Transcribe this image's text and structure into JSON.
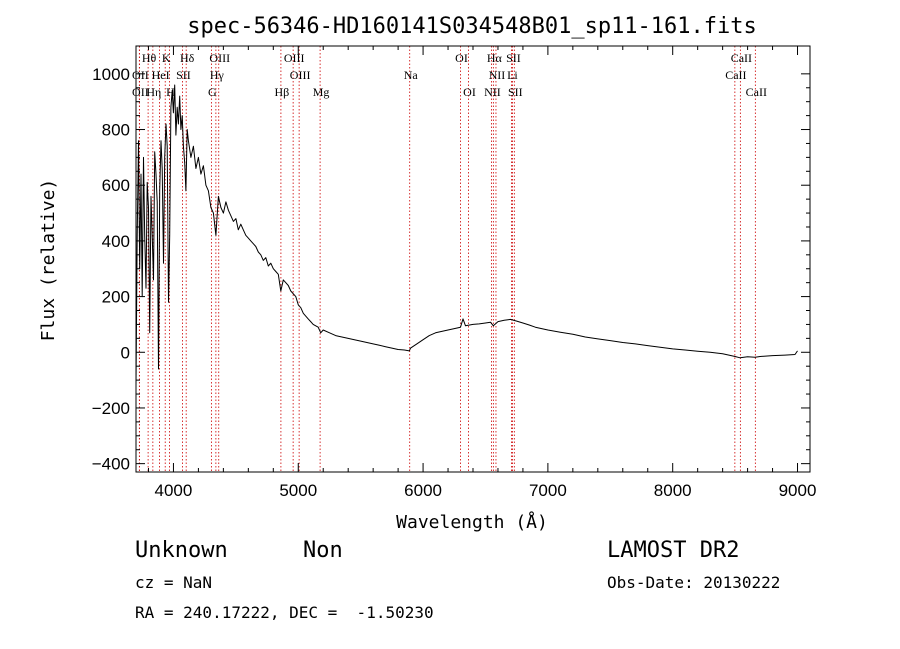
{
  "chart_data": {
    "type": "line",
    "title": "spec-56346-HD160141S034548B01_sp11-161.fits",
    "xlabel": "Wavelength (Å)",
    "ylabel": "Flux (relative)",
    "xlim": [
      3700,
      9100
    ],
    "ylim": [
      -430,
      1100
    ],
    "x_ticks": [
      4000,
      5000,
      6000,
      7000,
      8000,
      9000
    ],
    "y_ticks": [
      -400,
      -200,
      0,
      200,
      400,
      600,
      800,
      1000
    ],
    "series_color": "#000000",
    "line_color": "#cc0000",
    "series": [
      {
        "points": [
          [
            3700,
            -120
          ],
          [
            3710,
            420
          ],
          [
            3720,
            760
          ],
          [
            3730,
            300
          ],
          [
            3740,
            640
          ],
          [
            3750,
            200
          ],
          [
            3760,
            700
          ],
          [
            3770,
            420
          ],
          [
            3780,
            230
          ],
          [
            3790,
            610
          ],
          [
            3800,
            520
          ],
          [
            3810,
            70
          ],
          [
            3820,
            560
          ],
          [
            3830,
            420
          ],
          [
            3840,
            260
          ],
          [
            3850,
            720
          ],
          [
            3860,
            640
          ],
          [
            3870,
            540
          ],
          [
            3880,
            -60
          ],
          [
            3890,
            580
          ],
          [
            3900,
            760
          ],
          [
            3910,
            660
          ],
          [
            3920,
            320
          ],
          [
            3930,
            700
          ],
          [
            3940,
            820
          ],
          [
            3950,
            740
          ],
          [
            3960,
            180
          ],
          [
            3970,
            420
          ],
          [
            3980,
            880
          ],
          [
            3990,
            940
          ],
          [
            4000,
            860
          ],
          [
            4010,
            960
          ],
          [
            4020,
            780
          ],
          [
            4030,
            880
          ],
          [
            4040,
            820
          ],
          [
            4050,
            920
          ],
          [
            4060,
            800
          ],
          [
            4070,
            850
          ],
          [
            4080,
            740
          ],
          [
            4090,
            680
          ],
          [
            4100,
            580
          ],
          [
            4110,
            800
          ],
          [
            4120,
            760
          ],
          [
            4140,
            700
          ],
          [
            4160,
            740
          ],
          [
            4180,
            660
          ],
          [
            4200,
            700
          ],
          [
            4220,
            640
          ],
          [
            4240,
            670
          ],
          [
            4260,
            600
          ],
          [
            4280,
            580
          ],
          [
            4300,
            520
          ],
          [
            4320,
            500
          ],
          [
            4340,
            420
          ],
          [
            4360,
            560
          ],
          [
            4380,
            520
          ],
          [
            4400,
            500
          ],
          [
            4420,
            540
          ],
          [
            4440,
            510
          ],
          [
            4460,
            490
          ],
          [
            4480,
            470
          ],
          [
            4500,
            480
          ],
          [
            4520,
            440
          ],
          [
            4540,
            460
          ],
          [
            4560,
            440
          ],
          [
            4580,
            420
          ],
          [
            4600,
            410
          ],
          [
            4620,
            400
          ],
          [
            4640,
            390
          ],
          [
            4660,
            380
          ],
          [
            4680,
            360
          ],
          [
            4700,
            350
          ],
          [
            4720,
            330
          ],
          [
            4740,
            340
          ],
          [
            4760,
            310
          ],
          [
            4780,
            320
          ],
          [
            4800,
            300
          ],
          [
            4820,
            290
          ],
          [
            4840,
            280
          ],
          [
            4860,
            220
          ],
          [
            4880,
            260
          ],
          [
            4900,
            250
          ],
          [
            4920,
            240
          ],
          [
            4940,
            220
          ],
          [
            4960,
            210
          ],
          [
            4980,
            200
          ],
          [
            5000,
            170
          ],
          [
            5020,
            160
          ],
          [
            5040,
            140
          ],
          [
            5060,
            130
          ],
          [
            5080,
            120
          ],
          [
            5100,
            110
          ],
          [
            5120,
            100
          ],
          [
            5140,
            95
          ],
          [
            5160,
            90
          ],
          [
            5180,
            70
          ],
          [
            5200,
            80
          ],
          [
            5250,
            70
          ],
          [
            5300,
            60
          ],
          [
            5350,
            55
          ],
          [
            5400,
            50
          ],
          [
            5450,
            45
          ],
          [
            5500,
            40
          ],
          [
            5550,
            35
          ],
          [
            5600,
            30
          ],
          [
            5650,
            25
          ],
          [
            5700,
            20
          ],
          [
            5750,
            15
          ],
          [
            5800,
            10
          ],
          [
            5850,
            8
          ],
          [
            5890,
            5
          ],
          [
            5900,
            15
          ],
          [
            5950,
            30
          ],
          [
            6000,
            45
          ],
          [
            6050,
            60
          ],
          [
            6100,
            70
          ],
          [
            6150,
            75
          ],
          [
            6200,
            80
          ],
          [
            6250,
            85
          ],
          [
            6300,
            90
          ],
          [
            6320,
            120
          ],
          [
            6340,
            95
          ],
          [
            6400,
            100
          ],
          [
            6450,
            102
          ],
          [
            6500,
            105
          ],
          [
            6540,
            108
          ],
          [
            6563,
            95
          ],
          [
            6600,
            110
          ],
          [
            6650,
            115
          ],
          [
            6700,
            118
          ],
          [
            6750,
            112
          ],
          [
            6800,
            105
          ],
          [
            6850,
            98
          ],
          [
            6900,
            90
          ],
          [
            6950,
            85
          ],
          [
            7000,
            80
          ],
          [
            7100,
            72
          ],
          [
            7200,
            65
          ],
          [
            7300,
            55
          ],
          [
            7400,
            48
          ],
          [
            7500,
            42
          ],
          [
            7600,
            35
          ],
          [
            7700,
            30
          ],
          [
            7800,
            24
          ],
          [
            7900,
            18
          ],
          [
            8000,
            12
          ],
          [
            8100,
            8
          ],
          [
            8200,
            4
          ],
          [
            8300,
            0
          ],
          [
            8400,
            -5
          ],
          [
            8450,
            -10
          ],
          [
            8500,
            -15
          ],
          [
            8540,
            -20
          ],
          [
            8600,
            -16
          ],
          [
            8660,
            -18
          ],
          [
            8700,
            -15
          ],
          [
            8800,
            -12
          ],
          [
            8900,
            -10
          ],
          [
            8980,
            -8
          ],
          [
            9000,
            5
          ]
        ]
      }
    ],
    "spectral_lines": [
      {
        "label": "Hθ",
        "x": 3797,
        "row": 0
      },
      {
        "label": "K",
        "x": 3934,
        "row": 0
      },
      {
        "label": "Hδ",
        "x": 4102,
        "row": 0
      },
      {
        "label": "OIII",
        "x": 4363,
        "row": 0
      },
      {
        "label": "OIII",
        "x": 4959,
        "row": 0
      },
      {
        "label": "OI",
        "x": 6300,
        "row": 0
      },
      {
        "label": "Hα",
        "x": 6563,
        "row": 0
      },
      {
        "label": "SII",
        "x": 6716,
        "row": 0
      },
      {
        "label": "CaII",
        "x": 8542,
        "row": 0
      },
      {
        "label": "OII",
        "x": 3727,
        "row": 1
      },
      {
        "label": "HeI",
        "x": 3889,
        "row": 1
      },
      {
        "label": "SII",
        "x": 4072,
        "row": 1
      },
      {
        "label": "Hγ",
        "x": 4340,
        "row": 1
      },
      {
        "label": "OIII",
        "x": 5007,
        "row": 1
      },
      {
        "label": "Na",
        "x": 5893,
        "row": 1
      },
      {
        "label": "NII",
        "x": 6584,
        "row": 1
      },
      {
        "label": "Li",
        "x": 6708,
        "row": 1
      },
      {
        "label": "CaII",
        "x": 8498,
        "row": 1
      },
      {
        "label": "OII",
        "x": 3727,
        "row": 2
      },
      {
        "label": "Hη",
        "x": 3835,
        "row": 2
      },
      {
        "label": "H",
        "x": 3968,
        "row": 2
      },
      {
        "label": "G",
        "x": 4304,
        "row": 2
      },
      {
        "label": "Hβ",
        "x": 4861,
        "row": 2
      },
      {
        "label": "Mg",
        "x": 5175,
        "row": 2
      },
      {
        "label": "OI",
        "x": 6364,
        "row": 2
      },
      {
        "label": "NII",
        "x": 6548,
        "row": 2
      },
      {
        "label": "SII",
        "x": 6731,
        "row": 2
      },
      {
        "label": "CaII",
        "x": 8662,
        "row": 2
      }
    ]
  },
  "footer": {
    "class": "Unknown",
    "subclass": "Non",
    "survey": "LAMOST DR2",
    "cz": "cz = NaN",
    "obs_date": "Obs-Date: 20130222",
    "coords": "RA = 240.17222, DEC =  -1.50230"
  }
}
